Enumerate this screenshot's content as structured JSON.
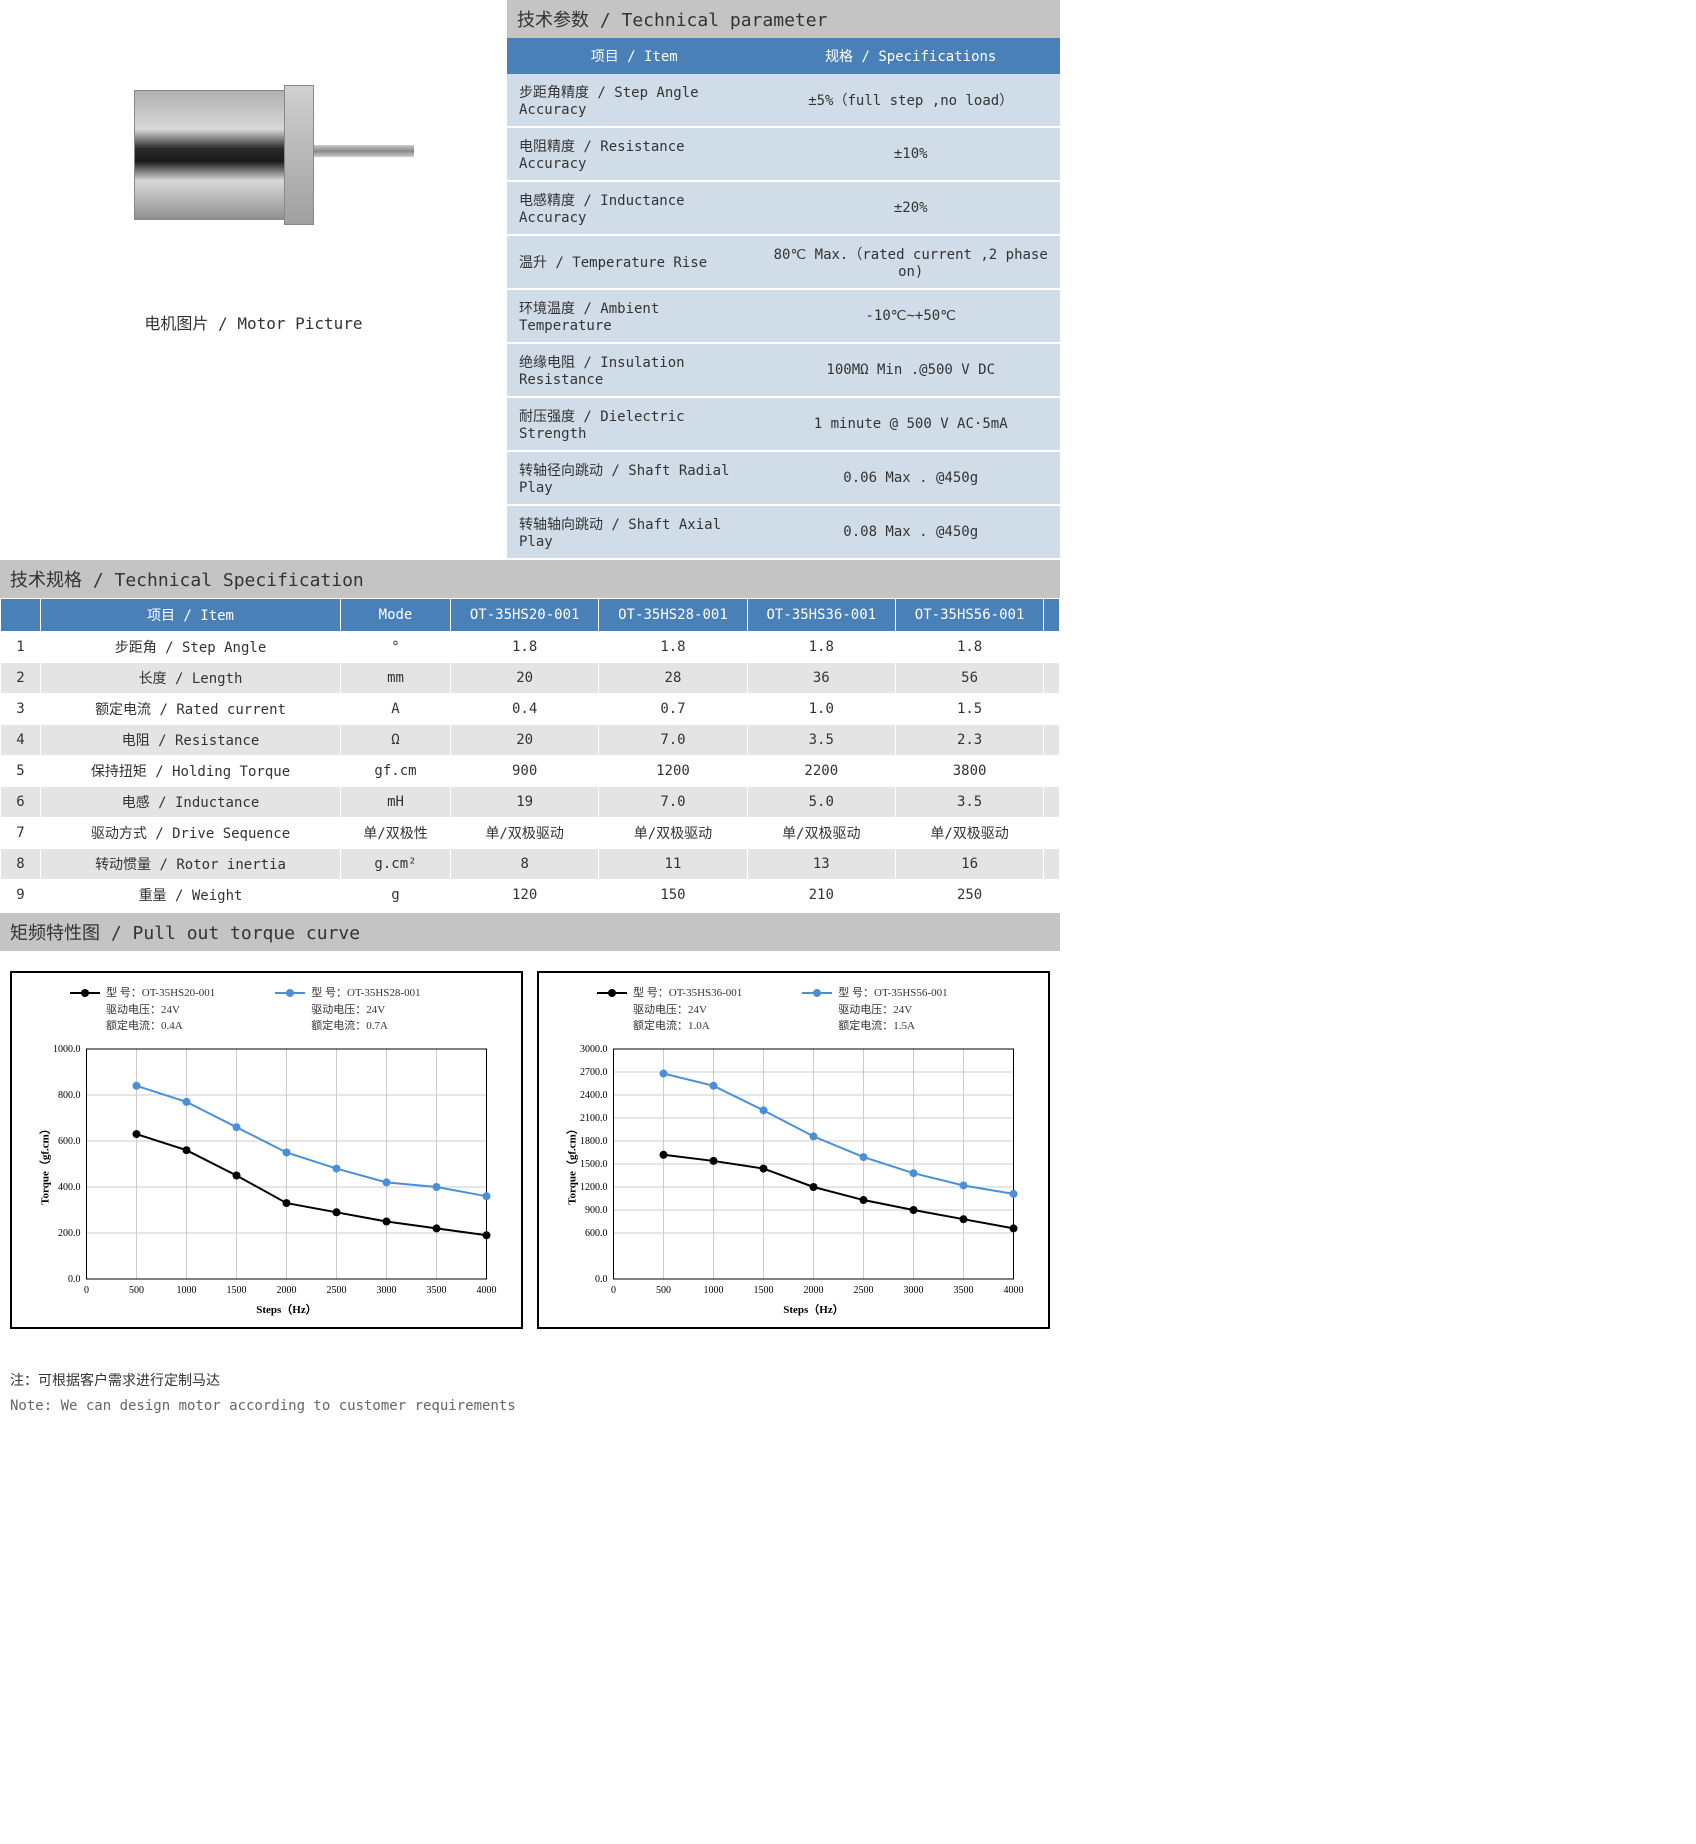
{
  "motor_caption": "电机图片 / Motor Picture",
  "tech_param": {
    "title": "技术参数 / Technical parameter",
    "headers": [
      "项目 / Item",
      "规格 / Specifications"
    ],
    "rows": [
      [
        "步距角精度 / Step Angle Accuracy",
        "±5%（full step ,no load）"
      ],
      [
        "电阻精度 / Resistance Accuracy",
        "±10%"
      ],
      [
        "电感精度 / Inductance Accuracy",
        "±20%"
      ],
      [
        "温升 / Temperature Rise",
        "80℃ Max.（rated current ,2 phase on)"
      ],
      [
        "环境温度 / Ambient Temperature",
        "-10℃~+50℃"
      ],
      [
        "绝缘电阻 / Insulation Resistance",
        "100MΩ Min .@500 V DC"
      ],
      [
        "耐压强度 / Dielectric Strength",
        "1 minute @ 500 V AC·5mA"
      ],
      [
        "转轴径向跳动 / Shaft Radial Play",
        "0.06 Max . @450g"
      ],
      [
        "转轴轴向跳动 / Shaft Axial Play",
        "0.08 Max  . @450g"
      ]
    ]
  },
  "tech_spec": {
    "title": "技术规格 / Technical Specification",
    "headers": [
      "",
      "项目 / Item",
      "Mode",
      "OT-35HS20-001",
      "OT-35HS28-001",
      "OT-35HS36-001",
      "OT-35HS56-001",
      ""
    ],
    "rows": [
      [
        "1",
        "步距角 / Step Angle",
        "°",
        "1.8",
        "1.8",
        "1.8",
        "1.8",
        ""
      ],
      [
        "2",
        "长度 / Length",
        "mm",
        "20",
        "28",
        "36",
        "56",
        ""
      ],
      [
        "3",
        "额定电流 / Rated current",
        "A",
        "0.4",
        "0.7",
        "1.0",
        "1.5",
        ""
      ],
      [
        "4",
        "电阻 / Resistance",
        "Ω",
        "20",
        "7.0",
        "3.5",
        "2.3",
        ""
      ],
      [
        "5",
        "保持扭矩 / Holding Torque",
        "gf.cm",
        "900",
        "1200",
        "2200",
        "3800",
        ""
      ],
      [
        "6",
        "电感 / Inductance",
        "mH",
        "19",
        "7.0",
        "5.0",
        "3.5",
        ""
      ],
      [
        "7",
        "驱动方式 / Drive Sequence",
        "单/双极性",
        "单/双极驱动",
        "单/双极驱动",
        "单/双极驱动",
        "单/双极驱动",
        ""
      ],
      [
        "8",
        "转动惯量 / Rotor inertia",
        "g.cm²",
        "8",
        "11",
        "13",
        "16",
        ""
      ],
      [
        "9",
        "重量 / Weight",
        "g",
        "120",
        "150",
        "210",
        "250",
        ""
      ]
    ]
  },
  "torque_curve": {
    "title": "矩频特性图 / Pull out torque curve"
  },
  "chart_labels": {
    "model_label": "型  号：",
    "voltage_label": "驱动电压：",
    "current_label": "额定电流：",
    "xlabel": "Steps（Hz）",
    "ylabel": "Torque（gf.cm）"
  },
  "chart1": {
    "xlim": [
      0,
      4000
    ],
    "xtick_step": 500,
    "ylim": [
      0,
      1000
    ],
    "ytick_step": 200,
    "ytick_vals": [
      0.0,
      200.0,
      400.0,
      600.0,
      800.0,
      1000.0
    ],
    "grid_color": "#cccccc",
    "series": [
      {
        "model": "OT-35HS20-001",
        "voltage": "24V",
        "current": "0.4A",
        "color": "#000000",
        "x": [
          500,
          1000,
          1500,
          2000,
          2500,
          3000,
          3500,
          4000
        ],
        "y": [
          630,
          560,
          450,
          330,
          290,
          250,
          220,
          190
        ]
      },
      {
        "model": "OT-35HS28-001",
        "voltage": "24V",
        "current": "0.7A",
        "color": "#4a90d9",
        "x": [
          500,
          1000,
          1500,
          2000,
          2500,
          3000,
          3500,
          4000
        ],
        "y": [
          840,
          770,
          660,
          550,
          480,
          420,
          400,
          360
        ]
      }
    ]
  },
  "chart2": {
    "xlim": [
      0,
      4000
    ],
    "xtick_step": 500,
    "ylim": [
      0,
      3000
    ],
    "ytick_step": 300,
    "ytick_vals": [
      0.0,
      600.0,
      900.0,
      1200.0,
      1500.0,
      1800.0,
      2100.0,
      2400.0,
      2700.0,
      3000.0
    ],
    "grid_color": "#cccccc",
    "series": [
      {
        "model": "OT-35HS36-001",
        "voltage": "24V",
        "current": "1.0A",
        "color": "#000000",
        "x": [
          500,
          1000,
          1500,
          2000,
          2500,
          3000,
          3500,
          4000
        ],
        "y": [
          1620,
          1540,
          1440,
          1200,
          1030,
          900,
          780,
          660
        ]
      },
      {
        "model": "OT-35HS56-001",
        "voltage": "24V",
        "current": "1.5A",
        "color": "#4a90d9",
        "x": [
          500,
          1000,
          1500,
          2000,
          2500,
          3000,
          3500,
          4000
        ],
        "y": [
          2680,
          2520,
          2200,
          1860,
          1590,
          1380,
          1220,
          1110
        ]
      }
    ]
  },
  "notes": {
    "zh": "注：可根据客户需求进行定制马达",
    "en": "Note: We can design motor according to customer requirements"
  }
}
